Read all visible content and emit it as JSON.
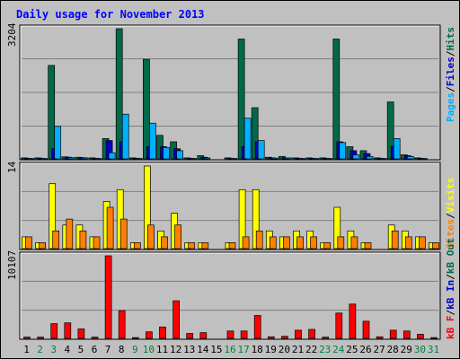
{
  "title": "Daily usage for November 2013",
  "colors": {
    "hits": "#006a4a",
    "files": "#0000c8",
    "pages": "#00b0ff",
    "visits": "#ffff00",
    "sites": "#ff8000",
    "kbytes": "#ff0000",
    "bg": "#c0c0c0",
    "panel_bg": "#c0c0c0",
    "grid": "#808080",
    "title": "#0000ff",
    "weekend": "#008040",
    "weekday": "#000000"
  },
  "legend": {
    "top": [
      "Pages",
      "/",
      "Files",
      "/",
      "Hits"
    ],
    "mid": [
      "Sites",
      "/",
      "Visits"
    ],
    "bot": [
      "kB F",
      "/",
      "kB In",
      "/",
      "kB Out"
    ]
  },
  "chart_data": [
    {
      "type": "bar",
      "panel": "top",
      "ymax_label": "3204",
      "ylim": [
        0,
        3204
      ],
      "categories": [
        "1",
        "2",
        "3",
        "4",
        "5",
        "6",
        "7",
        "8",
        "9",
        "10",
        "11",
        "12",
        "13",
        "14",
        "15",
        "16",
        "17",
        "18",
        "19",
        "20",
        "21",
        "22",
        "23",
        "24",
        "25",
        "26",
        "27",
        "28",
        "29",
        "30",
        "31"
      ],
      "weekend_days": [
        "2",
        "3",
        "9",
        "10",
        "16",
        "17",
        "23",
        "24",
        "30",
        "31"
      ],
      "series": [
        {
          "name": "Hits",
          "values": [
            25,
            25,
            2300,
            50,
            40,
            25,
            500,
            3204,
            25,
            2450,
            580,
            420,
            25,
            80,
            0,
            25,
            2950,
            1260,
            40,
            60,
            25,
            25,
            25,
            2950,
            300,
            200,
            25,
            1400,
            100,
            25,
            0
          ]
        },
        {
          "name": "Files",
          "values": [
            15,
            15,
            250,
            40,
            30,
            15,
            450,
            420,
            15,
            300,
            300,
            250,
            15,
            40,
            0,
            15,
            300,
            420,
            25,
            25,
            15,
            15,
            15,
            420,
            200,
            130,
            15,
            300,
            80,
            15,
            0
          ]
        },
        {
          "name": "Pages",
          "values": [
            10,
            10,
            800,
            30,
            25,
            10,
            150,
            1100,
            10,
            880,
            280,
            200,
            10,
            25,
            0,
            10,
            1000,
            450,
            20,
            25,
            10,
            10,
            10,
            400,
            100,
            60,
            10,
            500,
            60,
            10,
            0
          ]
        }
      ]
    },
    {
      "type": "bar",
      "panel": "middle",
      "ymax_label": "14",
      "ylim": [
        0,
        14
      ],
      "categories": [
        "1",
        "2",
        "3",
        "4",
        "5",
        "6",
        "7",
        "8",
        "9",
        "10",
        "11",
        "12",
        "13",
        "14",
        "15",
        "16",
        "17",
        "18",
        "19",
        "20",
        "21",
        "22",
        "23",
        "24",
        "25",
        "26",
        "27",
        "28",
        "29",
        "30",
        "31"
      ],
      "series": [
        {
          "name": "Visits",
          "values": [
            2,
            1,
            11,
            4,
            4,
            2,
            8,
            10,
            1,
            14,
            3,
            6,
            1,
            1,
            0,
            1,
            10,
            10,
            3,
            2,
            3,
            3,
            1,
            7,
            3,
            1,
            0,
            4,
            3,
            2,
            1
          ]
        },
        {
          "name": "Sites",
          "values": [
            2,
            1,
            3,
            5,
            3,
            2,
            7,
            5,
            1,
            4,
            2,
            4,
            1,
            1,
            0,
            1,
            2,
            3,
            2,
            2,
            2,
            2,
            1,
            2,
            2,
            1,
            0,
            3,
            2,
            2,
            1
          ]
        }
      ]
    },
    {
      "type": "bar",
      "panel": "bottom",
      "ymax_label": "10107",
      "ylim": [
        0,
        10107
      ],
      "categories": [
        "1",
        "2",
        "3",
        "4",
        "5",
        "6",
        "7",
        "8",
        "9",
        "10",
        "11",
        "12",
        "13",
        "14",
        "15",
        "16",
        "17",
        "18",
        "19",
        "20",
        "21",
        "22",
        "23",
        "24",
        "25",
        "26",
        "27",
        "28",
        "29",
        "30",
        "31"
      ],
      "series": [
        {
          "name": "kB F",
          "values": [
            150,
            150,
            1800,
            1900,
            1150,
            150,
            10107,
            3400,
            100,
            800,
            1400,
            4600,
            600,
            700,
            0,
            900,
            900,
            2800,
            200,
            250,
            1000,
            1100,
            150,
            3100,
            4200,
            2100,
            200,
            1000,
            900,
            500,
            100
          ]
        }
      ]
    }
  ],
  "days": [
    "1",
    "2",
    "3",
    "4",
    "5",
    "6",
    "7",
    "8",
    "9",
    "10",
    "11",
    "12",
    "13",
    "14",
    "15",
    "16",
    "17",
    "18",
    "19",
    "20",
    "21",
    "22",
    "23",
    "24",
    "25",
    "26",
    "27",
    "28",
    "29",
    "30",
    "31"
  ]
}
